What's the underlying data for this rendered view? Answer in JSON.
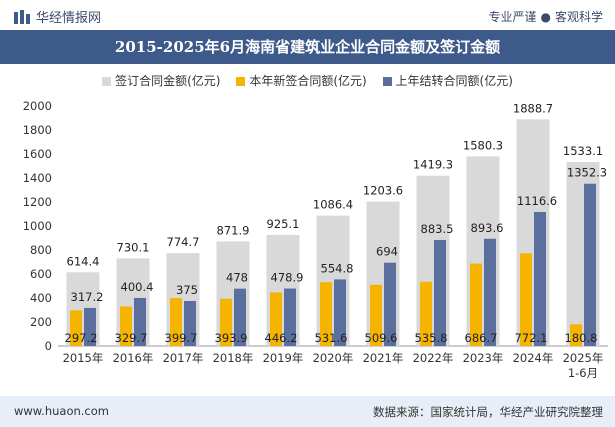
{
  "header": {
    "brand": "华经情报网",
    "tag_left": "专业严谨",
    "tag_sep": "●",
    "tag_right": "客观科学"
  },
  "legend": {
    "signed": "签订合同金额(亿元)",
    "new": "本年新签合同额(亿元)",
    "carryover": "上年结转合同额(亿元)"
  },
  "footer": {
    "url": "www.huaon.com",
    "source": "数据来源：国家统计局，华经产业研究院整理"
  },
  "colors": {
    "signed": "#d9d9d9",
    "new": "#f5b400",
    "carryover": "#5b6f9e",
    "title_bg": "#3e5a8a"
  },
  "chart_data": {
    "type": "bar",
    "title": "2015-2025年6月海南省建筑业企业合同金额及签订金额",
    "categories": [
      "2015年",
      "2016年",
      "2017年",
      "2018年",
      "2019年",
      "2020年",
      "2021年",
      "2022年",
      "2023年",
      "2024年",
      "2025年\n1-6月"
    ],
    "series": [
      {
        "name": "签订合同金额(亿元)",
        "values": [
          614.4,
          730.1,
          774.7,
          871.9,
          925.1,
          1086.4,
          1203.6,
          1419.3,
          1580.3,
          1888.7,
          1533.1
        ]
      },
      {
        "name": "本年新签合同额(亿元)",
        "values": [
          297.2,
          329.7,
          399.7,
          393.9,
          446.2,
          531.6,
          509.6,
          535.8,
          686.7,
          772.1,
          180.8
        ]
      },
      {
        "name": "上年结转合同额(亿元)",
        "values": [
          317.2,
          400.4,
          375,
          478,
          478.9,
          554.8,
          694,
          883.5,
          893.6,
          1116.6,
          1352.3
        ]
      }
    ],
    "value_labels": {
      "signed": [
        "614.4",
        "730.1",
        "774.7",
        "871.9",
        "925.1",
        "1086.4",
        "1203.6",
        "1419.3",
        "1580.3",
        "1888.7",
        "1533.1"
      ],
      "new": [
        "297.2",
        "329.7",
        "399.7",
        "393.9",
        "446.2",
        "531.6",
        "509.6",
        "535.8",
        "686.7",
        "772.1",
        "180.8"
      ],
      "carryover": [
        "317.2",
        "400.4",
        "375",
        "478",
        "478.9",
        "554.8",
        "694",
        "883.5",
        "893.6",
        "1116.6",
        "1352.3"
      ]
    },
    "ylim": [
      0,
      2000
    ],
    "yticks": [
      0,
      200,
      400,
      600,
      800,
      1000,
      1200,
      1400,
      1600,
      1800,
      2000
    ],
    "xlabel": "",
    "ylabel": "",
    "grid": false,
    "legend_position": "top-center"
  }
}
